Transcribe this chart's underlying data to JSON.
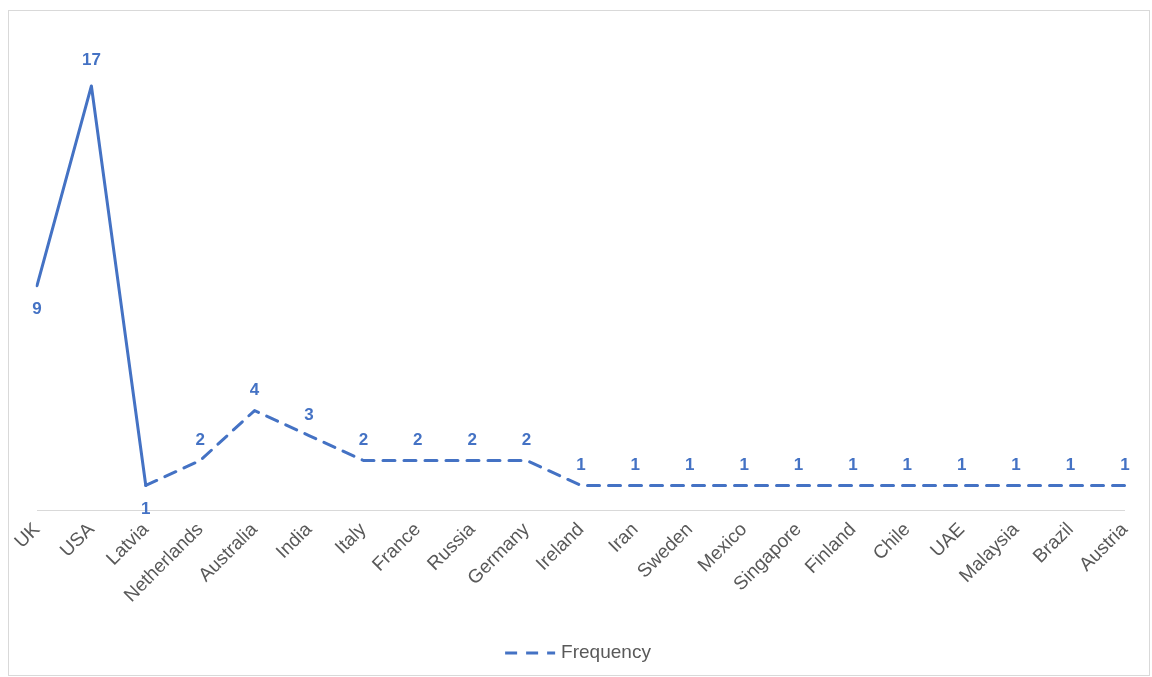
{
  "chart_data": {
    "type": "line",
    "categories": [
      "UK",
      "USA",
      "Latvia",
      "Netherlands",
      "Australia",
      "India",
      "Italy",
      "France",
      "Russia",
      "Germany",
      "Ireland",
      "Iran",
      "Sweden",
      "Mexico",
      "Singapore",
      "Finland",
      "Chile",
      "UAE",
      "Malaysia",
      "Brazil",
      "Austria"
    ],
    "series": [
      {
        "color": "#4472c4",
        "line_style": "solid",
        "values": [
          9,
          17,
          1,
          null,
          null,
          null,
          null,
          null,
          null,
          null,
          null,
          null,
          null,
          null,
          null,
          null,
          null,
          null,
          null,
          null,
          null
        ],
        "value_labels": [
          "9",
          "17",
          null,
          null,
          null,
          null,
          null,
          null,
          null,
          null,
          null,
          null,
          null,
          null,
          null,
          null,
          null,
          null,
          null,
          null,
          null
        ]
      },
      {
        "name": "Frequency",
        "color": "#4472c4",
        "line_style": "dashed",
        "marker": "none",
        "values": [
          null,
          null,
          1,
          2,
          4,
          3,
          2,
          2,
          2,
          2,
          1,
          1,
          1,
          1,
          1,
          1,
          1,
          1,
          1,
          1,
          1
        ],
        "value_labels": [
          null,
          null,
          "1",
          "2",
          "4",
          "3",
          "2",
          "2",
          "2",
          "2",
          "1",
          "1",
          "1",
          "1",
          "1",
          "1",
          "1",
          "1",
          "1",
          "1",
          "1"
        ]
      }
    ],
    "grid": false,
    "legend": "bottom",
    "tick_labels": "x"
  }
}
